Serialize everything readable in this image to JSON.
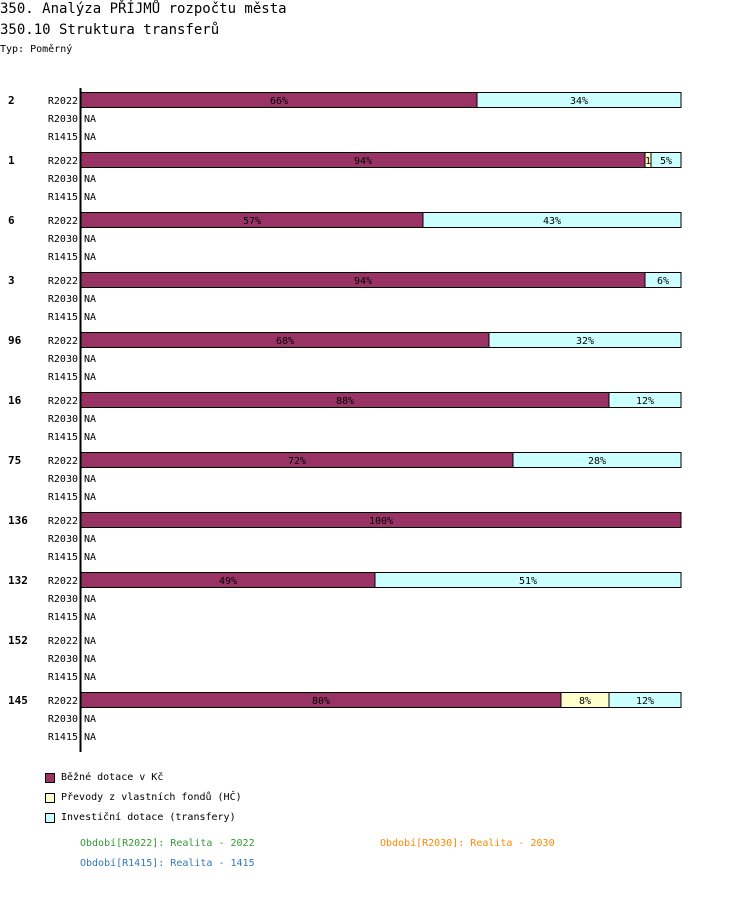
{
  "header": {
    "title": "350. Analýza PŘÍJMŮ rozpočtu města",
    "subtitle": "350.10 Struktura transferů",
    "type": "Typ: Poměrný"
  },
  "chart_data": {
    "type": "bar",
    "stacked": true,
    "orientation": "horizontal",
    "xlim": [
      0,
      100
    ],
    "series": [
      {
        "name": "Běžné dotace v Kč",
        "color": "#993366"
      },
      {
        "name": "Převody z vlastních fondů (HČ)",
        "color": "#ffffcc"
      },
      {
        "name": "Investiční dotace (transfery)",
        "color": "#ccffff"
      }
    ],
    "groups": [
      {
        "label": "2",
        "rows": [
          {
            "period": "R2022",
            "values": [
              66,
              0,
              34
            ]
          },
          {
            "period": "R2030",
            "na": "NA"
          },
          {
            "period": "R1415",
            "na": "NA"
          }
        ]
      },
      {
        "label": "1",
        "rows": [
          {
            "period": "R2022",
            "values": [
              94,
              1,
              5
            ]
          },
          {
            "period": "R2030",
            "na": "NA"
          },
          {
            "period": "R1415",
            "na": "NA"
          }
        ]
      },
      {
        "label": "6",
        "rows": [
          {
            "period": "R2022",
            "values": [
              57,
              0,
              43
            ]
          },
          {
            "period": "R2030",
            "na": "NA"
          },
          {
            "period": "R1415",
            "na": "NA"
          }
        ]
      },
      {
        "label": "3",
        "rows": [
          {
            "period": "R2022",
            "values": [
              94,
              0,
              6
            ]
          },
          {
            "period": "R2030",
            "na": "NA"
          },
          {
            "period": "R1415",
            "na": "NA"
          }
        ]
      },
      {
        "label": "96",
        "rows": [
          {
            "period": "R2022",
            "values": [
              68,
              0,
              32
            ]
          },
          {
            "period": "R2030",
            "na": "NA"
          },
          {
            "period": "R1415",
            "na": "NA"
          }
        ]
      },
      {
        "label": "16",
        "rows": [
          {
            "period": "R2022",
            "values": [
              88,
              0,
              12
            ]
          },
          {
            "period": "R2030",
            "na": "NA"
          },
          {
            "period": "R1415",
            "na": "NA"
          }
        ]
      },
      {
        "label": "75",
        "rows": [
          {
            "period": "R2022",
            "values": [
              72,
              0,
              28
            ]
          },
          {
            "period": "R2030",
            "na": "NA"
          },
          {
            "period": "R1415",
            "na": "NA"
          }
        ]
      },
      {
        "label": "136",
        "rows": [
          {
            "period": "R2022",
            "values": [
              100,
              0,
              0
            ]
          },
          {
            "period": "R2030",
            "na": "NA"
          },
          {
            "period": "R1415",
            "na": "NA"
          }
        ]
      },
      {
        "label": "132",
        "rows": [
          {
            "period": "R2022",
            "values": [
              49,
              0,
              51
            ]
          },
          {
            "period": "R2030",
            "na": "NA"
          },
          {
            "period": "R1415",
            "na": "NA"
          }
        ]
      },
      {
        "label": "152",
        "rows": [
          {
            "period": "R2022",
            "na": "NA"
          },
          {
            "period": "R2030",
            "na": "NA"
          },
          {
            "period": "R1415",
            "na": "NA"
          }
        ]
      },
      {
        "label": "145",
        "rows": [
          {
            "period": "R2022",
            "values": [
              80,
              8,
              12
            ]
          },
          {
            "period": "R2030",
            "na": "NA"
          },
          {
            "period": "R1415",
            "na": "NA"
          }
        ]
      }
    ]
  },
  "periods": [
    {
      "text": "Období[R2022]: Realita - 2022",
      "color": "#339933"
    },
    {
      "text": "Období[R2030]: Realita - 2030",
      "color": "#ff8800"
    },
    {
      "text": "Období[R1415]: Realita - 1415",
      "color": "#3377bb"
    }
  ]
}
